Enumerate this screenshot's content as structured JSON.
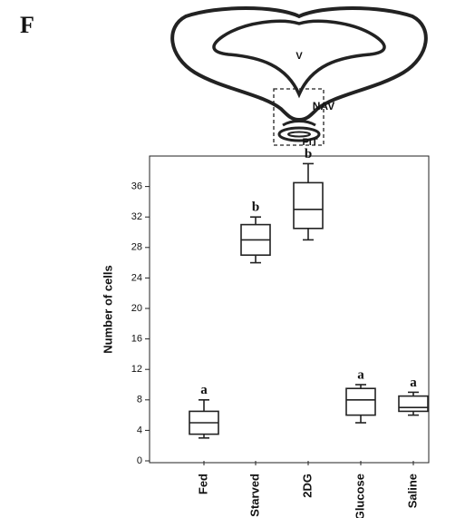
{
  "panel_label": "F",
  "diagram": {
    "labels": [
      "V",
      "NAV",
      "PIT"
    ]
  },
  "chart_data": {
    "type": "box",
    "ylabel": "Number of cells",
    "categories": [
      "Fed",
      "Starved",
      "2DG",
      "Glucose",
      "Saline"
    ],
    "boxes": [
      {
        "min": 3,
        "q1": 3.5,
        "median": 5,
        "q3": 6.5,
        "max": 8
      },
      {
        "min": 26,
        "q1": 27,
        "median": 29,
        "q3": 31,
        "max": 32
      },
      {
        "min": 29,
        "q1": 30.5,
        "median": 33,
        "q3": 36.5,
        "max": 39
      },
      {
        "min": 5,
        "q1": 6,
        "median": 8,
        "q3": 9.5,
        "max": 10
      },
      {
        "min": 6,
        "q1": 6.5,
        "median": 7,
        "q3": 8.5,
        "max": 9
      }
    ],
    "group_labels": [
      "a",
      "b",
      "b",
      "a",
      "a"
    ],
    "ylim": [
      0,
      40
    ],
    "yticks": [
      0,
      4,
      8,
      12,
      16,
      20,
      24,
      28,
      32,
      36
    ]
  }
}
